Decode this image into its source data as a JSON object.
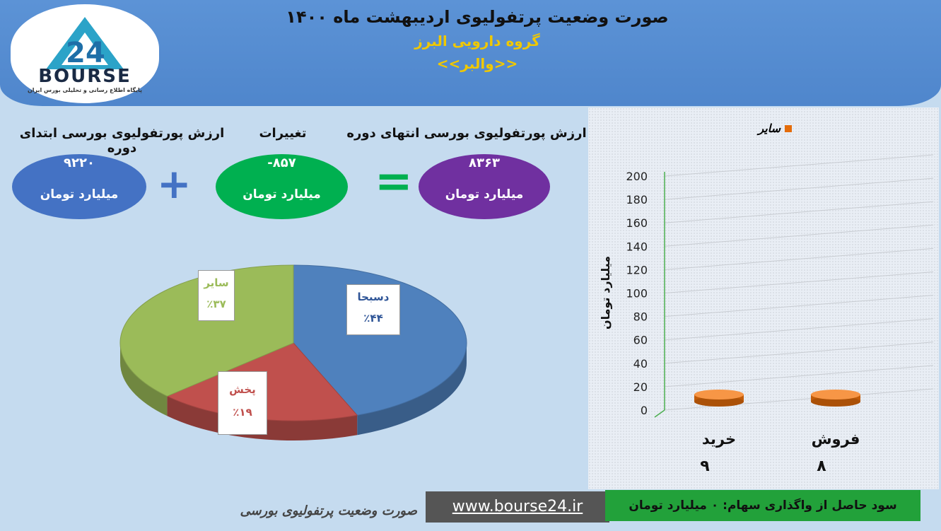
{
  "header": {
    "title": "صورت وضعیت پرتفولیوی اردیبهشت ماه ۱۴۰۰",
    "company": "گروه دارویی البرز",
    "symbol": "<<والبر>>",
    "logo_text": "BOURSE",
    "logo_subtitle": "پایگاه اطلاع رسانی و تحلیلی بورس ایران"
  },
  "summary": {
    "start": {
      "label": "ارزش پورتفولیوی بورسی ابتدای دوره",
      "value": "۹۲۲۰",
      "unit": "میلیارد تومان",
      "color": "#4472c4"
    },
    "change": {
      "label": "تغییرات",
      "value": "-۸۵۷",
      "unit": "میلیارد تومان",
      "color": "#00b050"
    },
    "end": {
      "label": "ارزش پورتفولیوی بورسی انتهای دوره",
      "value": "۸۳۶۳",
      "unit": "میلیارد تومان",
      "color": "#7030a0"
    },
    "plus_sign": "+",
    "equals_sign": "="
  },
  "chart_data": [
    {
      "type": "pie",
      "slices": [
        {
          "label": "دسبحا",
          "percent_label": "٪۴۴",
          "value": 44,
          "color": "#4f81bd",
          "text_color": "#2f5597"
        },
        {
          "label": "پخش",
          "percent_label": "٪۱۹",
          "value": 19,
          "color": "#c0504d",
          "text_color": "#c0504d"
        },
        {
          "label": "سایر",
          "percent_label": "٪۳۷",
          "value": 37,
          "color": "#9bbb59",
          "text_color": "#9bbb59"
        }
      ]
    },
    {
      "type": "bar",
      "categories": [
        "خرید",
        "فروش"
      ],
      "values": [
        9,
        8
      ],
      "value_labels": [
        "۹",
        "۸"
      ],
      "series": [
        {
          "name": "سایر",
          "values": [
            9,
            8
          ],
          "color": "#e46c0a"
        }
      ],
      "ylabel": "میلیارد تومان",
      "ylim": [
        0,
        200
      ],
      "yticks": [
        0,
        20,
        40,
        60,
        80,
        100,
        120,
        140,
        160,
        180,
        200
      ],
      "legend": "top"
    }
  ],
  "footer": {
    "subtitle": "صورت وضعیت پرتفولیوی بورسی",
    "url": "www.bourse24.ir",
    "profit": "سود حاصل از واگذاری سهام: ۰ میلیارد تومان"
  }
}
